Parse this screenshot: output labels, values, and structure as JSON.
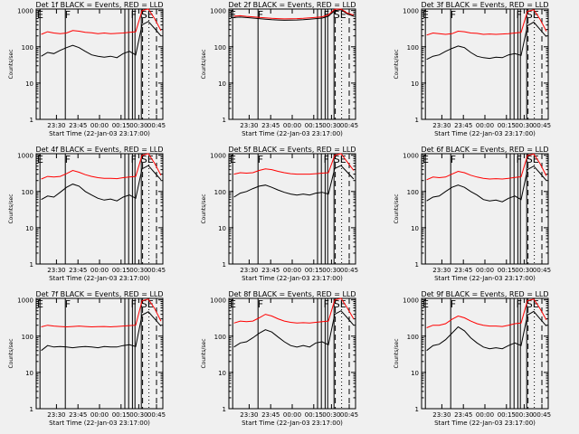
{
  "colors": {
    "background": "#f0f0f0",
    "events": "#000000",
    "lld": "#ff0000",
    "axes": "#000000"
  },
  "shared": {
    "ylabel": "Counts/sec",
    "xlabel": "Start Time (22-Jan-03 23:17:00)",
    "xticks": [
      "23:30",
      "23:45",
      "00:00",
      "00:15",
      "00:30",
      "00:45"
    ],
    "yticks": [
      "1",
      "10",
      "100",
      "1000"
    ],
    "flags": [
      "E",
      "F",
      "F",
      "SE"
    ]
  },
  "chart_data": [
    {
      "type": "line",
      "title": "Det 1f BLACK = Events, RED = LLD",
      "yscale": "log",
      "ylim": [
        1,
        1100
      ],
      "series": [
        {
          "color": "#000000",
          "values": [
            55,
            70,
            65,
            80,
            95,
            110,
            95,
            75,
            60,
            55,
            52,
            55,
            50,
            65,
            75,
            60,
            400,
            500,
            320,
            200
          ]
        },
        {
          "color": "#ff0000",
          "values": [
            220,
            260,
            240,
            230,
            240,
            280,
            270,
            250,
            245,
            230,
            240,
            230,
            235,
            240,
            250,
            260,
            1000,
            1100,
            600,
            280
          ]
        }
      ]
    },
    {
      "type": "line",
      "title": "Det 2f BLACK = Events, RED = LLD",
      "yscale": "log",
      "ylim": [
        1,
        1100
      ],
      "series": [
        {
          "color": "#000000",
          "values": [
            650,
            660,
            640,
            620,
            600,
            580,
            560,
            550,
            540,
            545,
            550,
            560,
            580,
            600,
            620,
            700,
            1000,
            1050,
            800,
            700
          ]
        },
        {
          "color": "#ff0000",
          "values": [
            700,
            720,
            690,
            670,
            650,
            630,
            610,
            600,
            590,
            595,
            600,
            610,
            630,
            650,
            670,
            760,
            1080,
            1100,
            850,
            750
          ]
        }
      ]
    },
    {
      "type": "line",
      "title": "Det 3f BLACK = Events, RED = LLD",
      "yscale": "log",
      "ylim": [
        1,
        1100
      ],
      "series": [
        {
          "color": "#000000",
          "values": [
            45,
            55,
            60,
            75,
            90,
            105,
            95,
            70,
            55,
            50,
            48,
            52,
            50,
            60,
            65,
            58,
            380,
            480,
            300,
            190
          ]
        },
        {
          "color": "#ff0000",
          "values": [
            210,
            240,
            230,
            220,
            230,
            270,
            260,
            240,
            235,
            220,
            225,
            220,
            225,
            230,
            240,
            250,
            950,
            1050,
            580,
            270
          ]
        }
      ]
    },
    {
      "type": "line",
      "title": "Det 4f BLACK = Events, RED = LLD",
      "yscale": "log",
      "ylim": [
        1,
        1100
      ],
      "series": [
        {
          "color": "#000000",
          "values": [
            60,
            75,
            70,
            95,
            130,
            160,
            140,
            100,
            80,
            65,
            58,
            62,
            55,
            70,
            80,
            65,
            420,
            520,
            330,
            210
          ]
        },
        {
          "color": "#ff0000",
          "values": [
            220,
            260,
            250,
            260,
            310,
            380,
            340,
            290,
            260,
            240,
            230,
            230,
            225,
            240,
            250,
            260,
            1000,
            1100,
            600,
            280
          ]
        }
      ]
    },
    {
      "type": "line",
      "title": "Det 5f BLACK = Events, RED = LLD",
      "yscale": "log",
      "ylim": [
        1,
        1100
      ],
      "series": [
        {
          "color": "#000000",
          "values": [
            70,
            90,
            100,
            120,
            140,
            150,
            130,
            110,
            95,
            85,
            80,
            85,
            80,
            90,
            95,
            85,
            430,
            520,
            340,
            220
          ]
        },
        {
          "color": "#ff0000",
          "values": [
            300,
            330,
            320,
            330,
            380,
            420,
            400,
            360,
            330,
            310,
            300,
            300,
            300,
            310,
            320,
            330,
            1000,
            1100,
            650,
            380
          ]
        }
      ]
    },
    {
      "type": "line",
      "title": "Det 6f BLACK = Events, RED = LLD",
      "yscale": "log",
      "ylim": [
        1,
        1100
      ],
      "series": [
        {
          "color": "#000000",
          "values": [
            55,
            70,
            75,
            100,
            130,
            150,
            130,
            100,
            80,
            60,
            55,
            58,
            52,
            65,
            75,
            60,
            400,
            500,
            320,
            200
          ]
        },
        {
          "color": "#ff0000",
          "values": [
            210,
            250,
            240,
            250,
            300,
            360,
            330,
            280,
            250,
            230,
            220,
            225,
            220,
            230,
            245,
            255,
            980,
            1080,
            590,
            270
          ]
        }
      ]
    },
    {
      "type": "line",
      "title": "Det 7f BLACK = Events, RED = LLD",
      "yscale": "log",
      "ylim": [
        1,
        1100
      ],
      "series": [
        {
          "color": "#000000",
          "values": [
            40,
            55,
            50,
            52,
            50,
            48,
            50,
            52,
            50,
            48,
            52,
            50,
            50,
            55,
            58,
            52,
            380,
            470,
            300,
            190
          ]
        },
        {
          "color": "#ff0000",
          "values": [
            180,
            200,
            190,
            185,
            180,
            185,
            190,
            185,
            180,
            182,
            185,
            180,
            185,
            190,
            195,
            200,
            950,
            1050,
            580,
            260
          ]
        }
      ]
    },
    {
      "type": "line",
      "title": "Det 8f BLACK = Events, RED = LLD",
      "yscale": "log",
      "ylim": [
        1,
        1100
      ],
      "series": [
        {
          "color": "#000000",
          "values": [
            50,
            65,
            70,
            90,
            120,
            150,
            130,
            95,
            70,
            55,
            50,
            55,
            50,
            65,
            70,
            58,
            400,
            500,
            320,
            200
          ]
        },
        {
          "color": "#ff0000",
          "values": [
            230,
            260,
            250,
            260,
            320,
            400,
            360,
            300,
            260,
            240,
            230,
            235,
            230,
            240,
            250,
            260,
            1000,
            1100,
            600,
            300
          ]
        }
      ]
    },
    {
      "type": "line",
      "title": "Det 9f BLACK = Events, RED = LLD",
      "yscale": "log",
      "ylim": [
        1,
        1100
      ],
      "series": [
        {
          "color": "#000000",
          "values": [
            40,
            55,
            60,
            80,
            120,
            180,
            140,
            90,
            65,
            50,
            45,
            48,
            45,
            55,
            65,
            55,
            380,
            480,
            300,
            190
          ]
        },
        {
          "color": "#ff0000",
          "values": [
            170,
            200,
            200,
            220,
            290,
            360,
            320,
            260,
            220,
            200,
            190,
            190,
            185,
            200,
            220,
            230,
            950,
            1050,
            580,
            280
          ]
        }
      ]
    }
  ]
}
